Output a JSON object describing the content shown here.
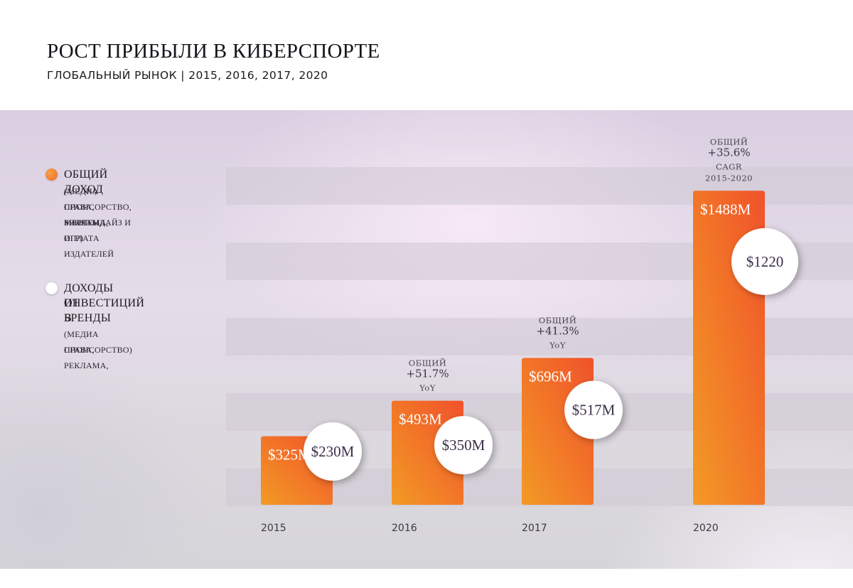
{
  "header": {
    "title": "РОСТ ПРИБЫЛИ В КИБЕРСПОРТЕ",
    "subtitle": "ГЛОБАЛЬНЫЙ РЫНОК | 2015, 2016, 2017, 2020"
  },
  "legend": {
    "total": {
      "label": "ОБЩИЙ ДОХОД",
      "note": [
        "(МЕДИА ПРАВА, РЕКЛАМА,",
        "СПОНСОРСТВО, МЕРЧЕНДАЙЗ И",
        "БИЛЕТЫ, ОПЛАТА ИЗДАТЕЛЕЙ",
        "ИГР)"
      ],
      "color": "#f07a22"
    },
    "brands": {
      "label": [
        "ДОХОДЫ ОТ",
        "ИНВЕСТИЦИЙ В",
        "БРЕНДЫ"
      ],
      "note": [
        "(МЕДИА ПРАВА, РЕКЛАМА,",
        "СПОНСОРСТВО)"
      ],
      "color": "#ffffff"
    }
  },
  "chart_data": {
    "type": "bar",
    "categories": [
      "2015",
      "2016",
      "2017",
      "2020"
    ],
    "series": [
      {
        "name": "ОБЩИЙ ДОХОД",
        "values": [
          325,
          493,
          696,
          1488
        ],
        "labels": [
          "$325M",
          "$493M",
          "$696M",
          "$1488M"
        ]
      },
      {
        "name": "ДОХОДЫ ОТ ИНВЕСТИЦИЙ В БРЕНДЫ",
        "values": [
          230,
          350,
          517,
          1220
        ],
        "labels": [
          "$230M",
          "$350M",
          "$517M",
          "$1220"
        ]
      }
    ],
    "ylim": [
      0,
      1600
    ],
    "annotations": [
      {
        "category": "2016",
        "lines": [
          "ОБЩИЙ",
          "+51.7%",
          "YoY"
        ]
      },
      {
        "category": "2017",
        "lines": [
          "ОБЩИЙ",
          "+41.3%",
          "YoY"
        ]
      },
      {
        "category": "2020",
        "lines": [
          "ОБЩИЙ",
          "+35.6%",
          "CAGR",
          "2015-2020"
        ]
      }
    ],
    "colors": {
      "bar_top": "#f0522a",
      "bar_bottom": "#f39a26",
      "circle": "#ffffff",
      "circle_text": "#3b2f4a",
      "band": "#cfc8d3"
    }
  }
}
